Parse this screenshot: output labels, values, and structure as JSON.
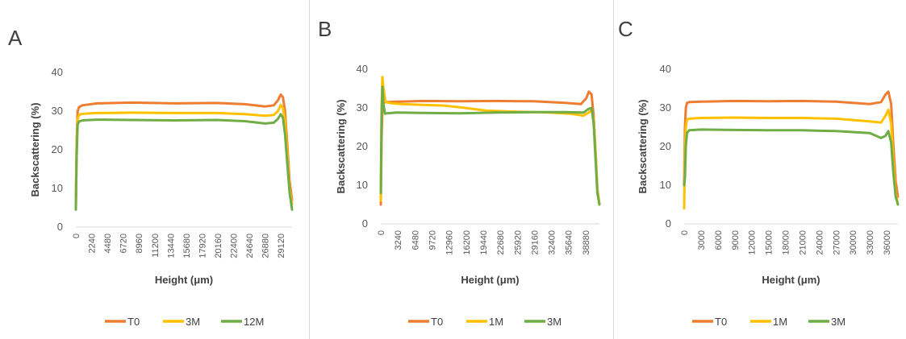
{
  "panels": [
    {
      "letter": "A"
    },
    {
      "letter": "B"
    },
    {
      "letter": "C"
    }
  ],
  "chart_data": [
    {
      "type": "line",
      "panel": "A",
      "ylabel": "Backscattering (%)",
      "xlabel": "Height (μm)",
      "ylim": [
        0,
        40
      ],
      "yticks": [
        0,
        10,
        20,
        30,
        40
      ],
      "xlim": [
        0,
        30700
      ],
      "xticks": [
        0,
        2240,
        4480,
        6720,
        8960,
        11200,
        13440,
        15680,
        17920,
        20160,
        22400,
        24640,
        26880,
        29120
      ],
      "legend_position": "bottom",
      "series": [
        {
          "name": "T0",
          "color": "#ED7D31",
          "x": [
            0,
            120,
            250,
            450,
            900,
            3000,
            8000,
            14000,
            20000,
            24000,
            26880,
            28100,
            28700,
            29100,
            29400,
            29700,
            30000,
            30350,
            30700
          ],
          "y": [
            7,
            22,
            30,
            31,
            31.5,
            32,
            32.2,
            32,
            32.1,
            31.8,
            31.2,
            31.5,
            32.8,
            34.3,
            33.6,
            30,
            22,
            12,
            7
          ]
        },
        {
          "name": "3M",
          "color": "#FFC000",
          "x": [
            0,
            120,
            250,
            450,
            900,
            3000,
            8000,
            14000,
            20000,
            24000,
            26880,
            28100,
            28700,
            29100,
            29400,
            29700,
            30000,
            30350,
            30700
          ],
          "y": [
            5,
            20,
            28,
            29,
            29.3,
            29.5,
            29.6,
            29.5,
            29.5,
            29.2,
            28.8,
            29,
            30,
            31.6,
            30.8,
            27.5,
            20,
            10,
            6
          ]
        },
        {
          "name": "12M",
          "color": "#70AD47",
          "x": [
            0,
            120,
            250,
            450,
            900,
            3000,
            8000,
            14000,
            20000,
            24000,
            26880,
            28100,
            28700,
            29100,
            29400,
            29700,
            30000,
            30350,
            30700
          ],
          "y": [
            4.5,
            18,
            26.5,
            27.3,
            27.6,
            27.8,
            27.7,
            27.6,
            27.7,
            27.4,
            26.8,
            27,
            28,
            29.2,
            28.3,
            24,
            17,
            9,
            4.5
          ]
        }
      ]
    },
    {
      "type": "line",
      "panel": "B",
      "ylabel": "Backscattering  (%)",
      "xlabel": "Height (μm)",
      "ylim": [
        0,
        40
      ],
      "yticks": [
        0,
        10,
        20,
        30,
        40
      ],
      "xlim": [
        0,
        41500
      ],
      "xticks": [
        0,
        3240,
        6480,
        9720,
        12960,
        16200,
        19440,
        22680,
        25920,
        29160,
        32400,
        35640,
        38880
      ],
      "legend_position": "bottom",
      "series": [
        {
          "name": "T0",
          "color": "#ED7D31",
          "x": [
            0,
            150,
            300,
            500,
            900,
            3000,
            8000,
            15000,
            22000,
            29000,
            35000,
            38000,
            39000,
            39500,
            40000,
            40400,
            40800,
            41100,
            41500
          ],
          "y": [
            5,
            22,
            30,
            31.3,
            31.5,
            31.6,
            31.8,
            31.7,
            31.8,
            31.7,
            31.3,
            31,
            32.5,
            34.2,
            33.5,
            28,
            18,
            9,
            5
          ]
        },
        {
          "name": "1M",
          "color": "#FFC000",
          "x": [
            0,
            150,
            300,
            500,
            900,
            2000,
            4000,
            8000,
            12000,
            16000,
            20000,
            26000,
            32000,
            36000,
            38500,
            39500,
            40000,
            40400,
            40800,
            41100,
            41500
          ],
          "y": [
            6,
            30,
            38,
            35,
            31.5,
            31.2,
            31,
            30.8,
            30.6,
            30,
            29.3,
            29,
            28.8,
            28.5,
            28,
            28.8,
            29.5,
            27,
            18,
            9,
            5
          ]
        },
        {
          "name": "3M",
          "color": "#70AD47",
          "x": [
            0,
            150,
            300,
            500,
            800,
            1200,
            3000,
            8000,
            15000,
            22000,
            29000,
            35000,
            38500,
            39500,
            40000,
            40400,
            40800,
            41100,
            41500
          ],
          "y": [
            8,
            28,
            35.5,
            31,
            28.5,
            28.6,
            28.8,
            28.7,
            28.6,
            28.8,
            28.9,
            28.9,
            28.8,
            29.8,
            30,
            26,
            16,
            8,
            5
          ]
        }
      ]
    },
    {
      "type": "line",
      "panel": "C",
      "ylabel": "Backscattering  (%)",
      "xlabel": "Height (μm)",
      "ylim": [
        0,
        40
      ],
      "yticks": [
        0,
        10,
        20,
        30,
        40
      ],
      "xlim": [
        0,
        38000
      ],
      "xticks": [
        0,
        3000,
        6000,
        9000,
        12000,
        15000,
        18000,
        21000,
        24000,
        27000,
        30000,
        33000,
        36000
      ],
      "legend_position": "bottom",
      "series": [
        {
          "name": "T0",
          "color": "#ED7D31",
          "x": [
            0,
            150,
            300,
            500,
            900,
            3000,
            9000,
            15000,
            21000,
            27000,
            33000,
            35000,
            35800,
            36300,
            36800,
            37200,
            37600,
            38000
          ],
          "y": [
            10,
            25,
            30,
            31.3,
            31.5,
            31.6,
            31.8,
            31.7,
            31.8,
            31.6,
            31,
            31.5,
            33.5,
            34.2,
            31,
            20,
            11,
            7
          ]
        },
        {
          "name": "1M",
          "color": "#FFC000",
          "x": [
            0,
            150,
            300,
            500,
            900,
            3000,
            9000,
            15000,
            21000,
            27000,
            33000,
            35000,
            35800,
            36300,
            36800,
            37200,
            37600,
            38000
          ],
          "y": [
            4,
            18,
            25,
            27,
            27.2,
            27.4,
            27.5,
            27.4,
            27.4,
            27.2,
            26.5,
            26.2,
            28,
            29.5,
            26,
            16,
            8,
            5
          ]
        },
        {
          "name": "3M",
          "color": "#70AD47",
          "x": [
            0,
            150,
            300,
            500,
            900,
            3000,
            9000,
            15000,
            21000,
            27000,
            33000,
            35000,
            35800,
            36300,
            36800,
            37200,
            37600,
            38000
          ],
          "y": [
            10,
            12,
            20,
            23.5,
            24.2,
            24.4,
            24.3,
            24.2,
            24.2,
            24,
            23.5,
            22.2,
            22.8,
            24,
            21,
            13,
            7,
            5
          ]
        }
      ]
    }
  ]
}
